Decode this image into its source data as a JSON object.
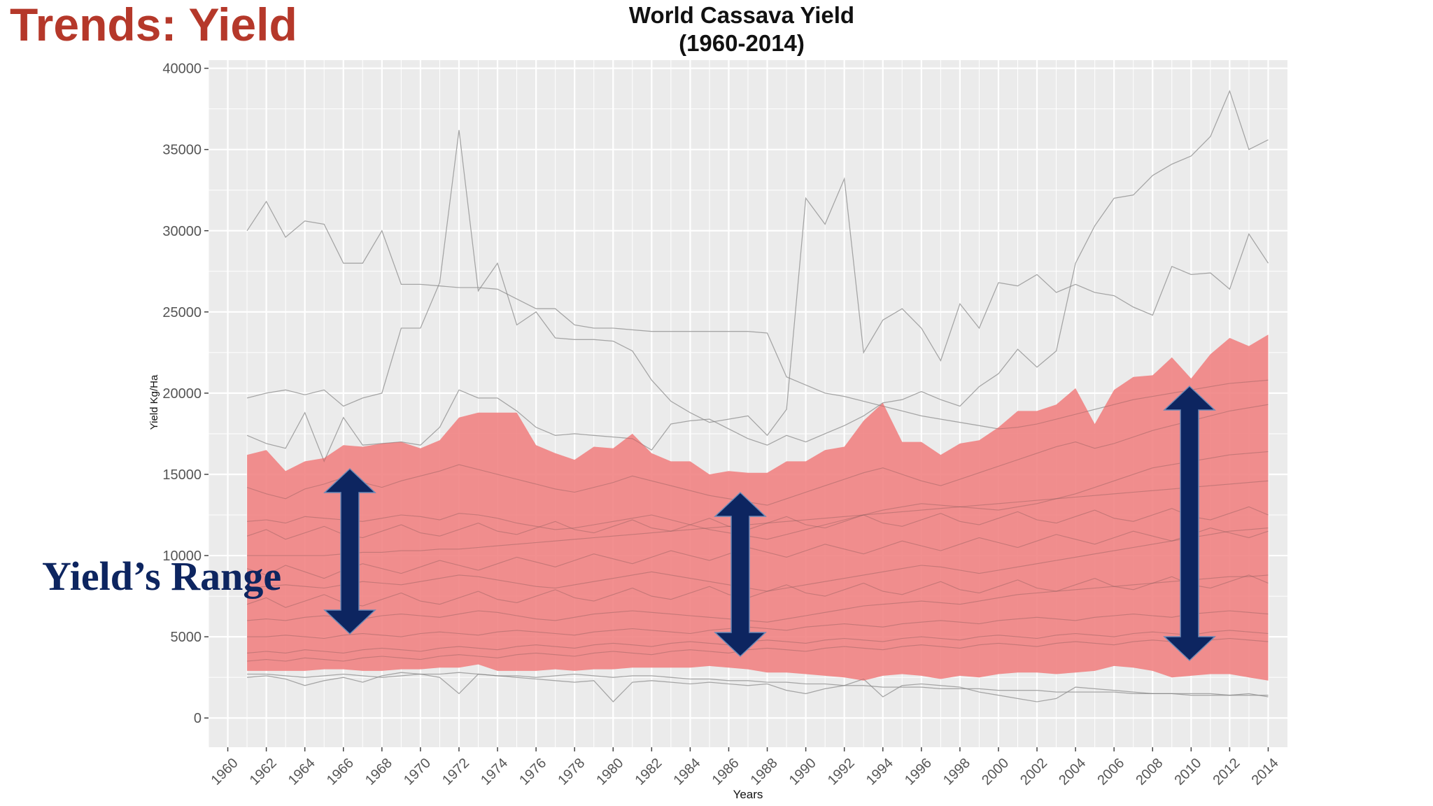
{
  "slide_title": "Trends: Yield",
  "annotation": "Yield’s Range",
  "colors": {
    "title_red": "#b5382a",
    "band_fill": "#f08080",
    "arrow_fill": "#0d2560",
    "panel_bg": "#ebebeb",
    "grid": "#ffffff",
    "country_line": "#444444"
  },
  "chart_data": {
    "type": "area",
    "title_line1": "World Cassava Yield",
    "title_line2": "(1960-2014)",
    "xlabel": "Years",
    "ylabel": "Yield Kg/Ha",
    "xlim": [
      1959,
      2015
    ],
    "ylim": [
      -1800,
      40500
    ],
    "x_ticks": [
      1960,
      1962,
      1964,
      1966,
      1968,
      1970,
      1972,
      1974,
      1976,
      1978,
      1980,
      1982,
      1984,
      1986,
      1988,
      1990,
      1992,
      1994,
      1996,
      1998,
      2000,
      2002,
      2004,
      2006,
      2008,
      2010,
      2012,
      2014
    ],
    "y_ticks": [
      0,
      5000,
      10000,
      15000,
      20000,
      25000,
      30000,
      35000,
      40000
    ],
    "grid": true,
    "series": [
      {
        "x": [
          1961,
          1962,
          1963,
          1964,
          1965,
          1966,
          1967,
          1968,
          1969,
          1970,
          1971,
          1972,
          1973,
          1974,
          1975,
          1976,
          1977,
          1978,
          1979,
          1980,
          1981,
          1982,
          1983,
          1984,
          1985,
          1986,
          1987,
          1988,
          1989,
          1990,
          1991,
          1992,
          1993,
          1994,
          1995,
          1996,
          1997,
          1998,
          1999,
          2000,
          2001,
          2002,
          2003,
          2004,
          2005,
          2006,
          2007,
          2008,
          2009,
          2010,
          2011,
          2012,
          2013,
          2014
        ],
        "upper": [
          16200,
          16500,
          15200,
          15800,
          16000,
          16800,
          16700,
          16900,
          17000,
          16600,
          17100,
          18500,
          18800,
          18800,
          18800,
          16800,
          16300,
          15900,
          16700,
          16600,
          17500,
          16300,
          15800,
          15800,
          15000,
          15200,
          15100,
          15100,
          15800,
          15800,
          16500,
          16700,
          18300,
          19400,
          17000,
          17000,
          16200,
          16900,
          17100,
          17900,
          18900,
          18900,
          19300,
          20300,
          18100,
          20200,
          21000,
          21100,
          22200,
          20900,
          22400,
          23400,
          22900,
          23600
        ],
        "lower": [
          2900,
          2900,
          2900,
          2900,
          3000,
          3000,
          2900,
          2900,
          3000,
          3000,
          3100,
          3100,
          3300,
          2900,
          2900,
          2900,
          3000,
          2900,
          3000,
          3000,
          3100,
          3100,
          3100,
          3100,
          3200,
          3100,
          3000,
          2800,
          2800,
          2700,
          2600,
          2500,
          2300,
          2600,
          2700,
          2600,
          2400,
          2600,
          2500,
          2700,
          2800,
          2800,
          2700,
          2800,
          2900,
          3200,
          3100,
          2900,
          2500,
          2600,
          2700,
          2700,
          2500,
          2300
        ]
      }
    ],
    "background_lines": [
      [
        30000,
        31800,
        29600,
        30600,
        30400,
        28000,
        28000,
        30000,
        26700,
        26700,
        26600,
        26500,
        26500,
        26400,
        25800,
        25200,
        25200,
        24200,
        24000,
        24000,
        23900,
        23800,
        23800,
        23800,
        23800,
        23800,
        23800,
        23700,
        21000,
        20500,
        20000,
        19800,
        19500,
        19200,
        18900,
        18600,
        18400,
        18200,
        18000,
        17800,
        17900,
        18100,
        18400,
        18700,
        19000,
        19300,
        19600,
        19800,
        20000,
        20200,
        20400,
        20600,
        20700,
        20800
      ],
      [
        19700,
        20000,
        20200,
        19900,
        20200,
        19200,
        19700,
        20000,
        24000,
        24000,
        26800,
        36200,
        26300,
        28000,
        24200,
        25000,
        23400,
        23300,
        23300,
        23200,
        22600,
        20800,
        19500,
        18800,
        18200,
        18400,
        18600,
        17400,
        19000,
        32000,
        30400,
        33200,
        22500,
        24500,
        25200,
        24000,
        22000,
        25500,
        24000,
        26800,
        26600,
        27300,
        26200,
        26700,
        26200,
        26000,
        25300,
        24800,
        27800,
        27300,
        27400,
        26400,
        29800,
        28000
      ],
      [
        17400,
        16900,
        16600,
        18800,
        15800,
        18500,
        16800,
        16900,
        17000,
        16800,
        17900,
        20200,
        19700,
        19700,
        18900,
        17900,
        17400,
        17500,
        17400,
        17300,
        17200,
        16500,
        18100,
        18300,
        18400,
        17800,
        17200,
        16800,
        17400,
        17000,
        17500,
        18000,
        18600,
        19400,
        19600,
        20100,
        19600,
        19200,
        20400,
        21200,
        22700,
        21600,
        22600,
        28000,
        30300,
        32000,
        32200,
        33400,
        34100,
        34600,
        35800,
        38600,
        35000,
        35600
      ],
      [
        10000,
        10000,
        10000,
        10000,
        10000,
        10100,
        10200,
        10200,
        10300,
        10300,
        10400,
        10400,
        10500,
        10600,
        10700,
        10800,
        10900,
        11000,
        11100,
        11200,
        11300,
        11400,
        11500,
        11600,
        11700,
        11800,
        11900,
        12000,
        12100,
        12200,
        12300,
        12400,
        12500,
        12600,
        12700,
        12800,
        12900,
        13000,
        13100,
        13200,
        13300,
        13400,
        13500,
        13600,
        13700,
        13800,
        13900,
        14000,
        14100,
        14200,
        14300,
        14400,
        14500,
        14600
      ],
      [
        12100,
        12200,
        12000,
        12400,
        12300,
        12200,
        12100,
        12300,
        12500,
        12400,
        12200,
        12600,
        12500,
        12300,
        12000,
        11800,
        11600,
        11700,
        11900,
        12100,
        12300,
        12500,
        12200,
        11900,
        11600,
        11400,
        11200,
        11000,
        11300,
        11600,
        11900,
        12200,
        12500,
        12800,
        13000,
        13200,
        13100,
        13000,
        12900,
        12800,
        13000,
        13200,
        13500,
        13800,
        14200,
        14600,
        15000,
        15400,
        15600,
        15800,
        16000,
        16200,
        16300,
        16400
      ],
      [
        8000,
        8100,
        8200,
        8100,
        8000,
        8200,
        8400,
        8300,
        8200,
        8400,
        8600,
        8800,
        8700,
        8500,
        8300,
        8100,
        8000,
        8200,
        8400,
        8600,
        8800,
        9000,
        8800,
        8600,
        8400,
        8200,
        8000,
        7800,
        8000,
        8200,
        8400,
        8600,
        8800,
        9000,
        9200,
        9400,
        9300,
        9100,
        8900,
        9100,
        9300,
        9500,
        9700,
        9900,
        10100,
        10300,
        10500,
        10700,
        10900,
        11100,
        11300,
        11500,
        11600,
        11700
      ],
      [
        6000,
        6100,
        6000,
        6200,
        6300,
        6200,
        6100,
        6300,
        6400,
        6300,
        6200,
        6400,
        6600,
        6500,
        6300,
        6100,
        6000,
        6200,
        6400,
        6500,
        6600,
        6500,
        6400,
        6300,
        6200,
        6100,
        6000,
        5900,
        6100,
        6300,
        6500,
        6700,
        6900,
        7000,
        7100,
        7200,
        7100,
        7000,
        7200,
        7400,
        7600,
        7700,
        7800,
        7900,
        8000,
        8100,
        8200,
        8300,
        8400,
        8500,
        8600,
        8700,
        8700,
        8800
      ],
      [
        5000,
        5000,
        5100,
        5000,
        4900,
        5100,
        5200,
        5100,
        5000,
        5200,
        5300,
        5200,
        5100,
        5300,
        5400,
        5300,
        5200,
        5100,
        5300,
        5400,
        5500,
        5400,
        5300,
        5200,
        5400,
        5500,
        5600,
        5500,
        5400,
        5600,
        5700,
        5800,
        5700,
        5600,
        5800,
        5900,
        6000,
        5900,
        5800,
        6000,
        6100,
        6200,
        6100,
        6000,
        6200,
        6300,
        6400,
        6300,
        6200,
        6400,
        6500,
        6600,
        6500,
        6400
      ],
      [
        4000,
        4100,
        4000,
        4200,
        4100,
        4000,
        4200,
        4300,
        4200,
        4100,
        4300,
        4400,
        4300,
        4200,
        4400,
        4500,
        4400,
        4300,
        4500,
        4600,
        4500,
        4400,
        4600,
        4700,
        4600,
        4500,
        4700,
        4800,
        4700,
        4600,
        4800,
        4900,
        4800,
        4700,
        4900,
        5000,
        4900,
        4800,
        5000,
        5100,
        5000,
        4900,
        5100,
        5200,
        5100,
        5000,
        5200,
        5300,
        5200,
        5100,
        5300,
        5400,
        5300,
        5200
      ],
      [
        14200,
        13800,
        13500,
        14100,
        14400,
        14800,
        14500,
        14200,
        14600,
        14900,
        15200,
        15600,
        15300,
        15000,
        14700,
        14400,
        14100,
        13900,
        14200,
        14500,
        14900,
        14600,
        14300,
        14000,
        13700,
        13500,
        13300,
        13100,
        13500,
        13900,
        14300,
        14700,
        15100,
        15400,
        15000,
        14600,
        14300,
        14700,
        15100,
        15500,
        15900,
        16300,
        16700,
        17000,
        16600,
        16900,
        17300,
        17700,
        18000,
        18300,
        18600,
        18900,
        19100,
        19300
      ],
      [
        2700,
        2700,
        2600,
        2500,
        2600,
        2700,
        2600,
        2500,
        2600,
        2700,
        2700,
        2800,
        2700,
        2600,
        2600,
        2500,
        2600,
        2700,
        2600,
        2500,
        2600,
        2600,
        2500,
        2400,
        2400,
        2300,
        2300,
        2200,
        2200,
        2100,
        2100,
        2000,
        2000,
        1900,
        1900,
        1900,
        1800,
        1800,
        1800,
        1700,
        1700,
        1700,
        1600,
        1600,
        1600,
        1600,
        1500,
        1500,
        1500,
        1500,
        1500,
        1400,
        1400,
        1400
      ],
      [
        2500,
        2600,
        2400,
        2000,
        2300,
        2500,
        2200,
        2600,
        2800,
        2700,
        2500,
        1500,
        2700,
        2600,
        2500,
        2400,
        2300,
        2200,
        2300,
        1000,
        2200,
        2300,
        2200,
        2100,
        2200,
        2100,
        2000,
        2100,
        1700,
        1500,
        1800,
        2000,
        2400,
        1300,
        2000,
        2100,
        2000,
        1900,
        1600,
        1400,
        1200,
        1000,
        1200,
        1900,
        1800,
        1700,
        1600,
        1500,
        1500,
        1400,
        1400,
        1400,
        1500,
        1300
      ],
      [
        9200,
        8800,
        9400,
        9000,
        8600,
        9100,
        9500,
        9200,
        8900,
        9300,
        9700,
        9400,
        9100,
        9500,
        9900,
        9600,
        9300,
        9700,
        10100,
        9800,
        9500,
        9900,
        10300,
        10000,
        9700,
        10100,
        10500,
        10200,
        9900,
        10300,
        10700,
        10400,
        10100,
        10500,
        10900,
        10600,
        10300,
        10700,
        11100,
        10800,
        10500,
        10900,
        11300,
        11000,
        10700,
        11100,
        11500,
        11200,
        10900,
        11300,
        11700,
        11400,
        11100,
        11500
      ],
      [
        7000,
        7400,
        6800,
        7200,
        7600,
        7100,
        6900,
        7300,
        7700,
        7200,
        7000,
        7400,
        7800,
        7300,
        7100,
        7500,
        7900,
        7400,
        7200,
        7600,
        8000,
        7500,
        7300,
        7700,
        8100,
        7600,
        7400,
        7800,
        8200,
        7700,
        7500,
        7900,
        8300,
        7800,
        7600,
        8000,
        8400,
        7900,
        7700,
        8100,
        8500,
        8000,
        7800,
        8200,
        8600,
        8100,
        7900,
        8300,
        8700,
        8200,
        8000,
        8400,
        8800,
        8300
      ],
      [
        3500,
        3600,
        3500,
        3700,
        3600,
        3500,
        3700,
        3800,
        3700,
        3600,
        3800,
        3900,
        3800,
        3700,
        3900,
        4000,
        3900,
        3800,
        4000,
        4100,
        4000,
        3900,
        4100,
        4200,
        4100,
        4000,
        4200,
        4300,
        4200,
        4100,
        4300,
        4400,
        4300,
        4200,
        4400,
        4500,
        4400,
        4300,
        4500,
        4600,
        4500,
        4400,
        4600,
        4700,
        4600,
        4500,
        4700,
        4800,
        4700,
        4600,
        4800,
        4900,
        4800,
        4700
      ],
      [
        11200,
        11600,
        11000,
        11400,
        11800,
        11300,
        11100,
        11500,
        11900,
        11400,
        11200,
        11600,
        12000,
        11500,
        11300,
        11700,
        12100,
        11600,
        11400,
        11800,
        12200,
        11700,
        11500,
        11900,
        12300,
        11800,
        11600,
        12000,
        12400,
        11900,
        11700,
        12100,
        12500,
        12000,
        11800,
        12200,
        12600,
        12100,
        11900,
        12300,
        12700,
        12200,
        12000,
        12400,
        12800,
        12300,
        12100,
        12500,
        12900,
        12400,
        12200,
        12600,
        13000,
        12500
      ]
    ]
  }
}
